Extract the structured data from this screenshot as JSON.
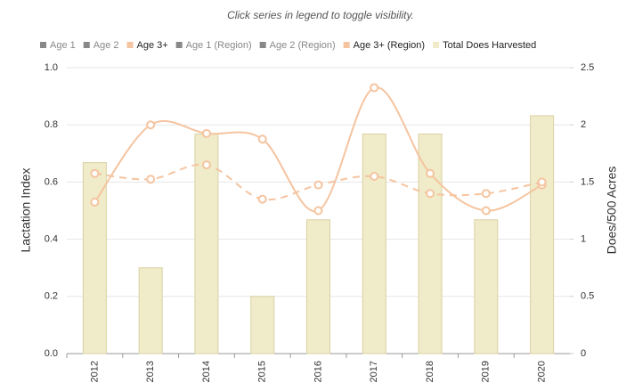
{
  "chart_data": {
    "type": "bar-line",
    "subtitle": "Click series in legend to toggle visibility.",
    "categories": [
      "2012",
      "2013",
      "2014",
      "2015",
      "2016",
      "2017",
      "2018",
      "2019",
      "2020"
    ],
    "ylabel": "Lactation Index",
    "y2label": "Does/500 Acres",
    "ylim": [
      0,
      1.0
    ],
    "yticks": [
      {
        "value": 0,
        "label": "0.0"
      },
      0.2,
      0.4,
      0.6,
      0.8,
      {
        "value": 1.0,
        "label": "1.0"
      }
    ],
    "y2lim": [
      0,
      2.5
    ],
    "y2ticks": [
      0,
      0.5,
      1,
      1.5,
      2,
      2.5
    ],
    "grid": true,
    "series": [
      {
        "name": "Age 1",
        "color": "#888888",
        "visible": false
      },
      {
        "name": "Age 2",
        "color": "#888888",
        "visible": false
      },
      {
        "name": "Age 3+",
        "color": "#f5c4a0",
        "type": "line",
        "dash": false,
        "visible": true,
        "values": [
          0.53,
          0.8,
          0.77,
          0.75,
          0.5,
          0.93,
          0.63,
          0.5,
          0.59
        ]
      },
      {
        "name": "Age 1 (Region)",
        "color": "#888888",
        "visible": false
      },
      {
        "name": "Age 2 (Region)",
        "color": "#888888",
        "visible": false
      },
      {
        "name": "Age 3+ (Region)",
        "color": "#f5c4a0",
        "type": "line",
        "dash": true,
        "visible": true,
        "values": [
          0.63,
          0.61,
          0.66,
          0.54,
          0.59,
          0.62,
          0.56,
          0.56,
          0.6
        ]
      },
      {
        "name": "Total Does Harvested",
        "color": "#f0ebc8",
        "type": "bar",
        "axis": "y2",
        "visible": true,
        "values": [
          1.67,
          0.75,
          1.92,
          0.5,
          1.17,
          1.92,
          1.92,
          1.17,
          2.08
        ]
      }
    ]
  }
}
